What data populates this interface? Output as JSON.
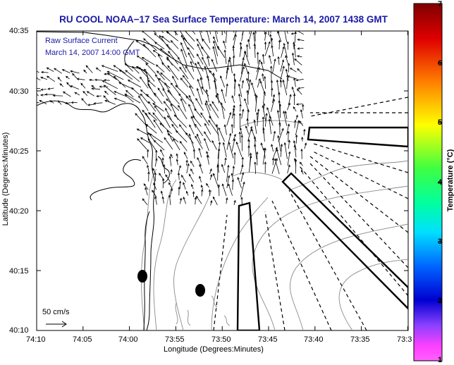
{
  "header": {
    "title": "RU COOL  NOAA−17  Sea Surface Temperature:  March 14, 2007 1438 GMT"
  },
  "axes": {
    "xlabel": "Longitude (Degrees:Minutes)",
    "ylabel": "Latitude (Degrees:Minutes)",
    "x_ticks": [
      "74:10",
      "74:05",
      "74:00",
      "73:55",
      "73:50",
      "73:45",
      "73:40",
      "73:35",
      "73:3"
    ],
    "y_ticks": [
      "40:35",
      "40:30",
      "40:25",
      "40:20",
      "40:15",
      "40:10"
    ]
  },
  "annotation": {
    "line1": "Raw Surface Current",
    "line2": "March 14, 2007 14:00 GMT"
  },
  "scale_arrow": {
    "label": "50 cm/s"
  },
  "colorbar": {
    "label": "Temperature (°C)",
    "ticks": [
      "7",
      "6",
      "5",
      "4",
      "3",
      "2",
      "1"
    ],
    "range": [
      1,
      7
    ],
    "colors": [
      "#8b0000",
      "#ff0000",
      "#ff8c00",
      "#ffff00",
      "#00ff00",
      "#00ffff",
      "#0000ff",
      "#6a0dad",
      "#ff00ff"
    ]
  },
  "map": {
    "coastline_color": "#000000",
    "bathymetry_color": "#8a8a8a",
    "vector_color": "#000000"
  }
}
